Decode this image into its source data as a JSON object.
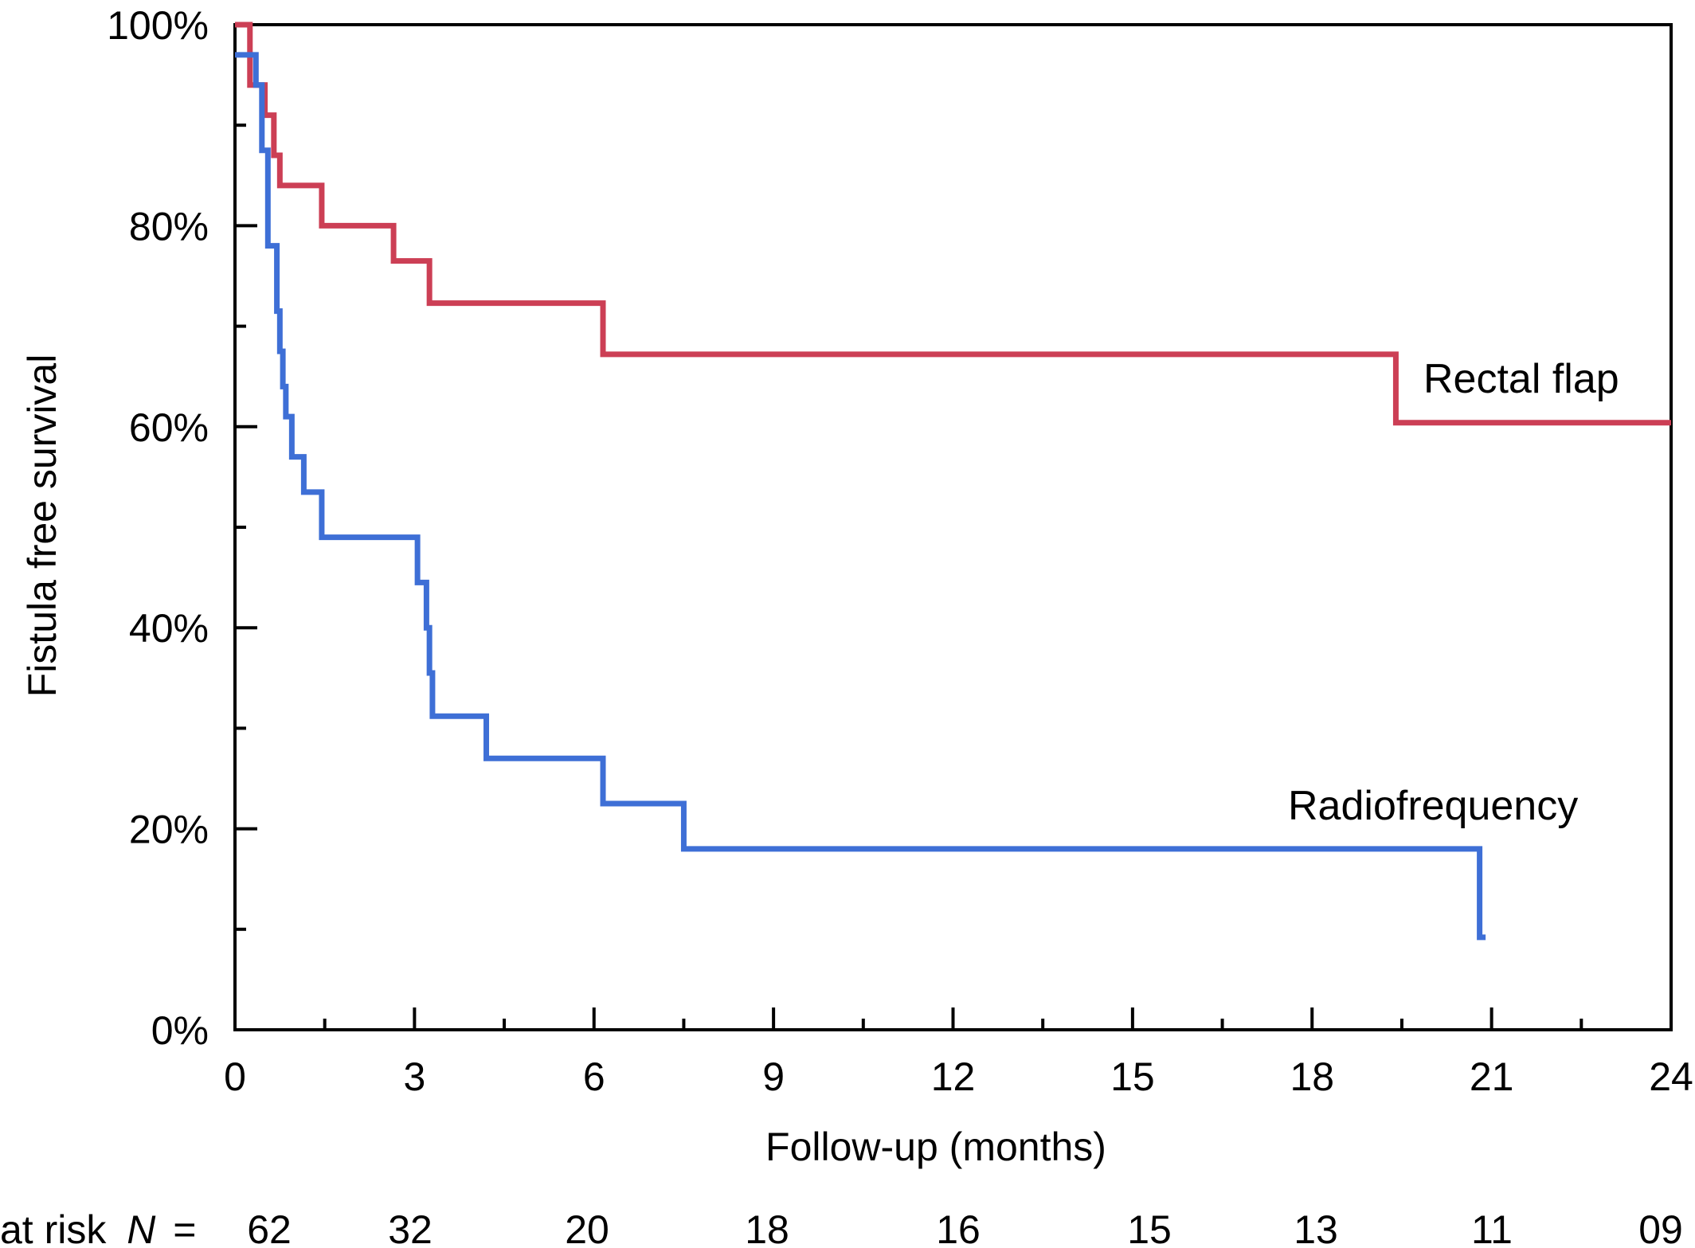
{
  "chart_data": {
    "type": "line",
    "title": "",
    "xlabel": "Follow-up (months)",
    "ylabel": "Fistula free survival",
    "xlim": [
      0,
      24
    ],
    "ylim": [
      0,
      100
    ],
    "x_ticks": [
      0,
      3,
      6,
      9,
      12,
      15,
      18,
      21,
      24
    ],
    "x_tick_labels": [
      "0",
      "3",
      "6",
      "9",
      "12",
      "15",
      "18",
      "21",
      "24"
    ],
    "y_ticks": [
      0,
      20,
      40,
      60,
      80,
      100
    ],
    "y_tick_labels": [
      "0%",
      "20%",
      "40%",
      "60%",
      "80%",
      "100%"
    ],
    "grid": false,
    "step": true,
    "series": [
      {
        "name": "Rectal flap",
        "color": "#cc3f55",
        "x": [
          0,
          0.25,
          0.5,
          0.65,
          0.75,
          1.45,
          2.65,
          3.25,
          6.15,
          19.4,
          24
        ],
        "y": [
          100,
          94,
          91,
          87,
          84,
          80,
          76.5,
          72.3,
          67.2,
          60.4,
          60.4
        ]
      },
      {
        "name": "Radiofrequency",
        "color": "#3e6fd6",
        "x": [
          0,
          0.35,
          0.45,
          0.55,
          0.7,
          0.75,
          0.8,
          0.85,
          0.95,
          1.15,
          1.45,
          3.05,
          3.2,
          3.25,
          3.3,
          4.2,
          6.15,
          7.5,
          20.8,
          20.9
        ],
        "y": [
          97,
          94,
          87.5,
          78,
          71.5,
          67.5,
          64,
          61,
          57,
          53.5,
          49,
          44.5,
          40,
          35.5,
          31.2,
          27,
          22.5,
          18,
          9.2,
          9.2
        ]
      }
    ],
    "at_risk": {
      "label": "at risk",
      "label_italic": "N",
      "label_eq": "=",
      "values": [
        "62",
        "32",
        "20",
        "18",
        "16",
        "15",
        "13",
        "11",
        "09"
      ]
    }
  }
}
